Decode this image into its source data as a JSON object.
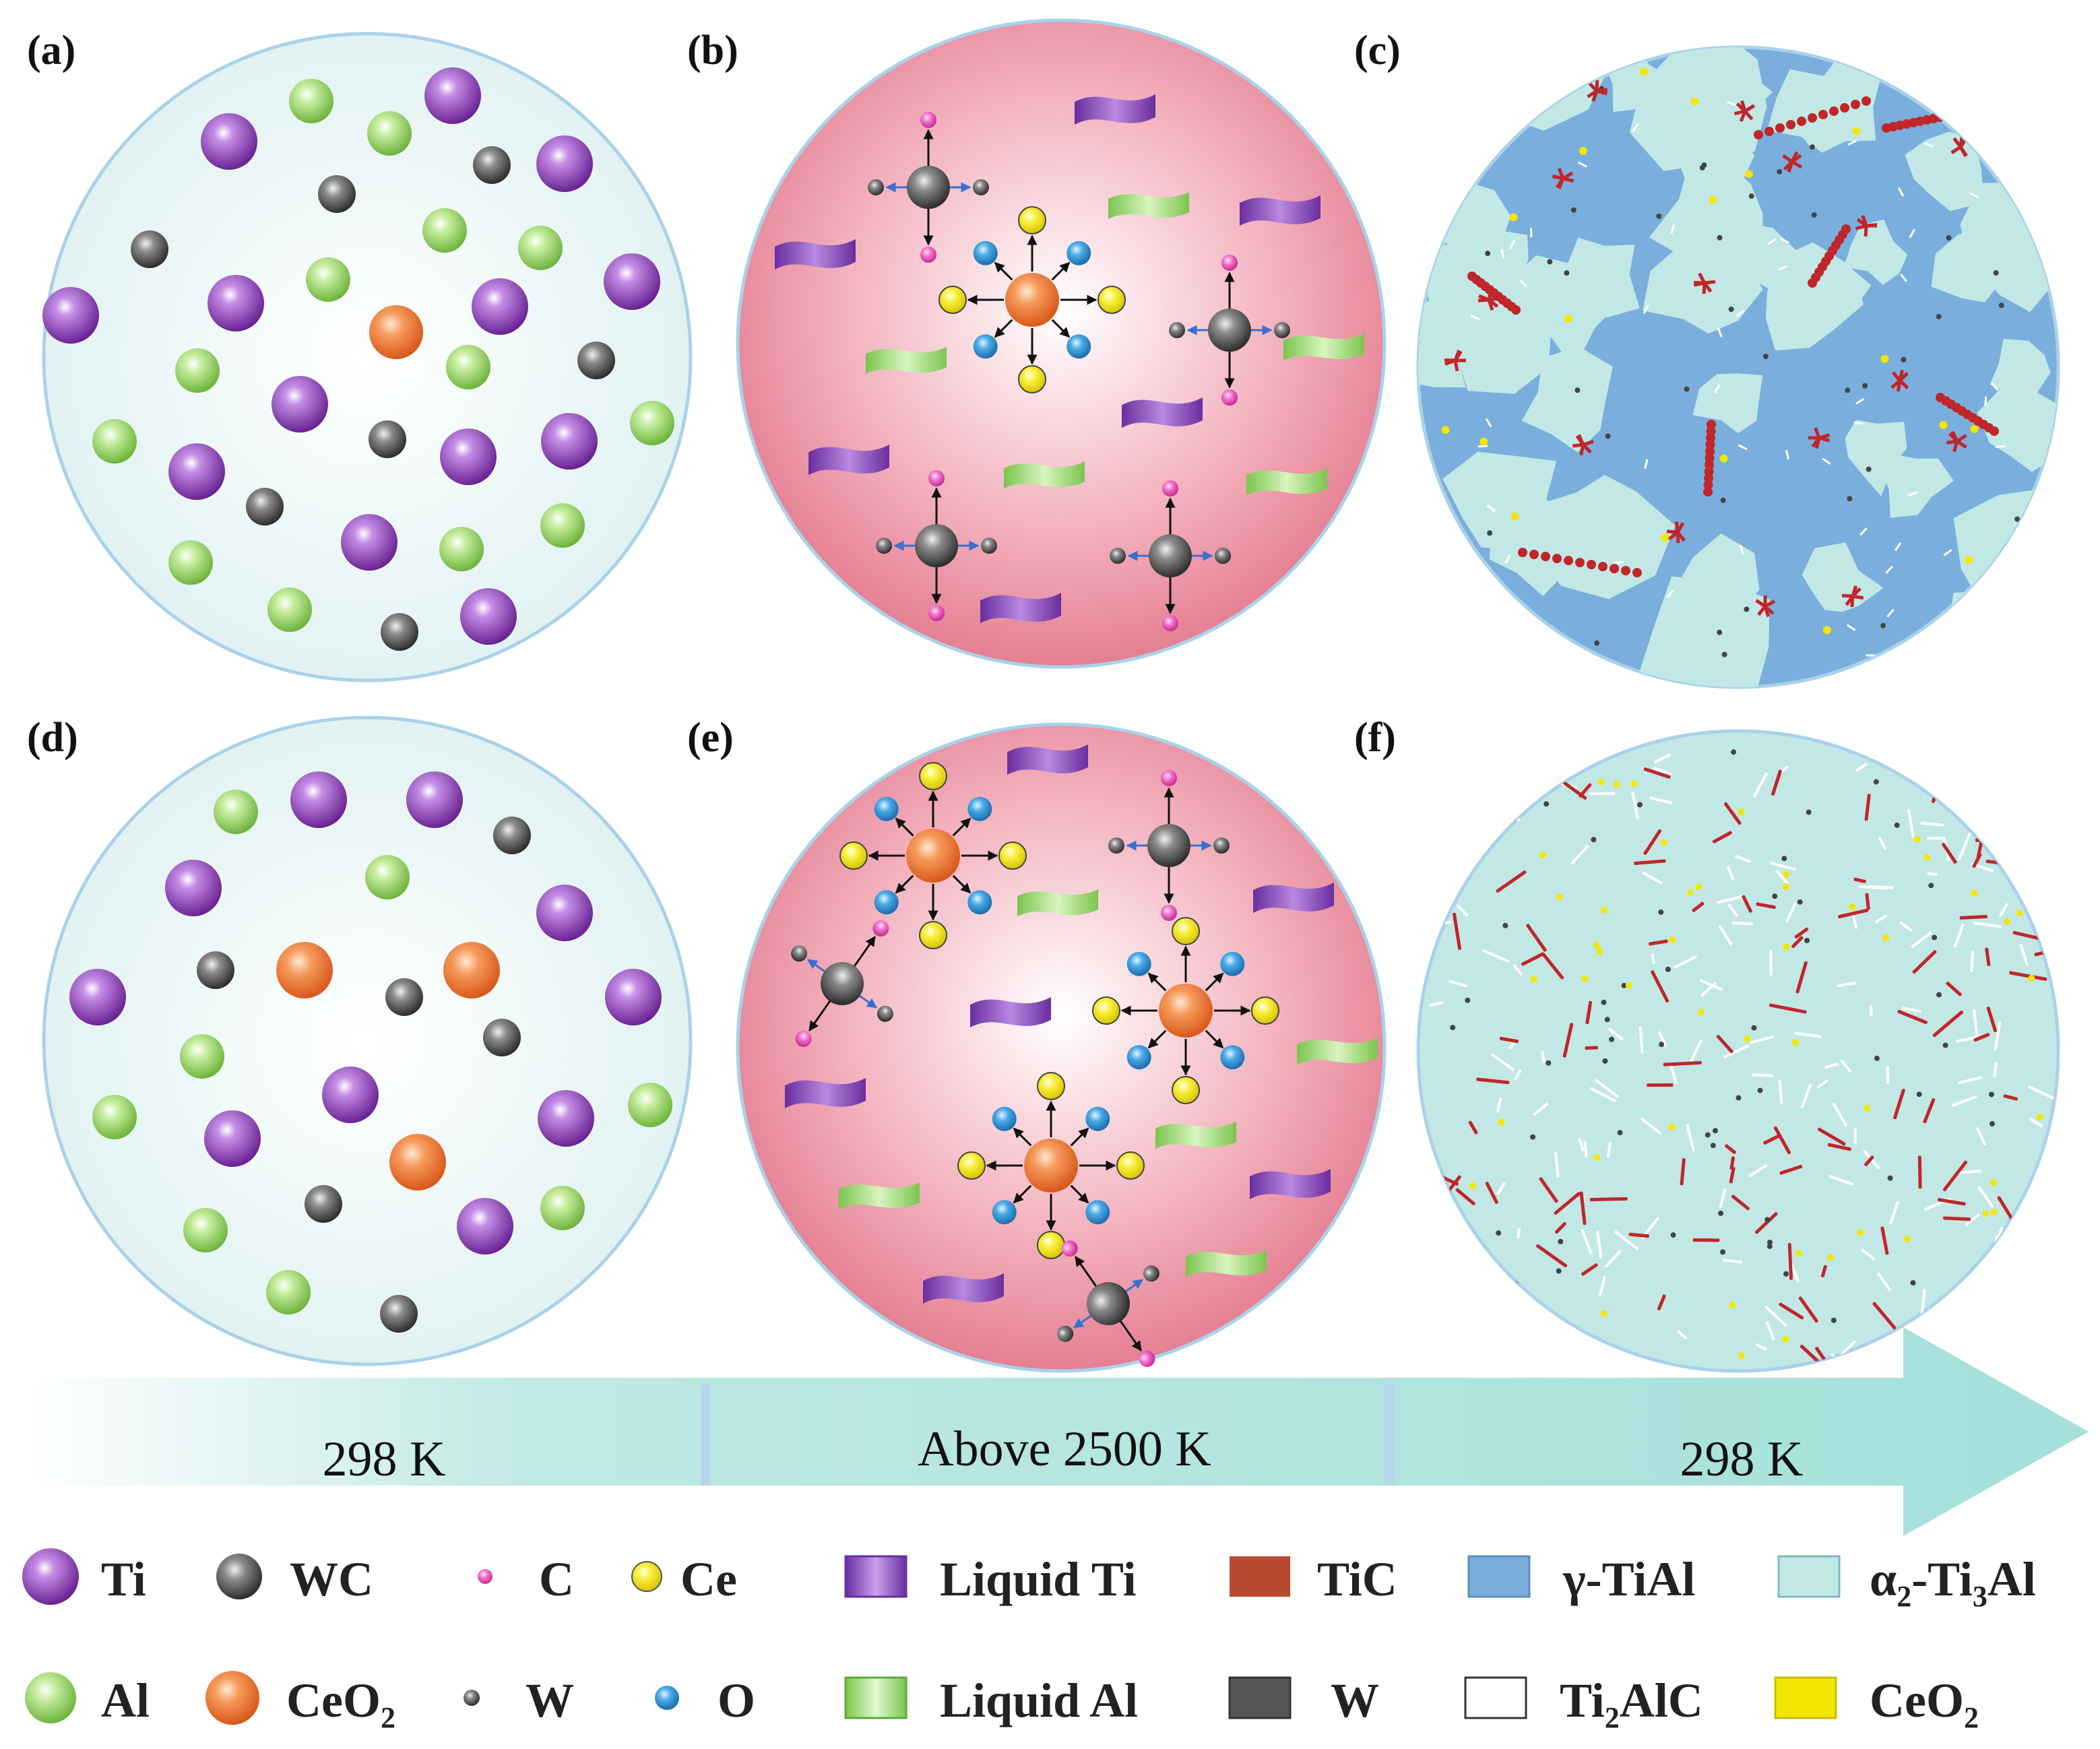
{
  "figure": {
    "panels": [
      {
        "id": "a",
        "label": "(a)",
        "kind": "mixture-cold"
      },
      {
        "id": "b",
        "label": "(b)",
        "kind": "melt"
      },
      {
        "id": "c",
        "label": "(c)",
        "kind": "solid-coarse"
      },
      {
        "id": "d",
        "label": "(d)",
        "kind": "mixture-cold-ceo2"
      },
      {
        "id": "e",
        "label": "(e)",
        "kind": "melt-ceo2"
      },
      {
        "id": "f",
        "label": "(f)",
        "kind": "solid-fine"
      }
    ],
    "stages": [
      {
        "label": "298 K"
      },
      {
        "label": "Above 2500 K"
      },
      {
        "label": "298 K"
      }
    ],
    "legend": {
      "row1": [
        {
          "symbol": "ti-sphere",
          "label": "Ti"
        },
        {
          "symbol": "wc-sphere",
          "label": "WC"
        },
        {
          "symbol": "c-dot",
          "label": "C"
        },
        {
          "symbol": "ce-dot",
          "label": "Ce"
        },
        {
          "symbol": "liquid-ti-ribbon",
          "label": "Liquid Ti"
        },
        {
          "symbol": "tic-box",
          "label": "TiC"
        },
        {
          "symbol": "gamma-tial-box",
          "label": "γ-TiAl"
        },
        {
          "symbol": "alpha2-box",
          "label": "α",
          "sub": "2",
          "label_tail": "-Ti",
          "sub2": "3",
          "label_tail2": "Al"
        }
      ],
      "row2": [
        {
          "symbol": "al-sphere",
          "label": "Al"
        },
        {
          "symbol": "ceo2-sphere",
          "label": "CeO",
          "sub": "2"
        },
        {
          "symbol": "w-dot",
          "label": "W"
        },
        {
          "symbol": "o-dot",
          "label": "O"
        },
        {
          "symbol": "liquid-al-ribbon",
          "label": "Liquid Al"
        },
        {
          "symbol": "w-box",
          "label": "W"
        },
        {
          "symbol": "ti2alc-box",
          "label": "Ti",
          "sub": "2",
          "label_tail": "AlC"
        },
        {
          "symbol": "ceo2-box",
          "label": "CeO",
          "sub": "2"
        }
      ]
    },
    "colors": {
      "ti": "#8a3fb4",
      "al": "#8fcd5c",
      "wc": "#555555",
      "ceo2": "#ef7b35",
      "ce": "#f2e21d",
      "o": "#2b8fd0",
      "c": "#e83fb0",
      "liquid_ti": "#8a4cc0",
      "liquid_al": "#8fd46a",
      "tic": "#b94a32",
      "gamma_tial": "#7aaedc",
      "alpha2": "#bfe8e6",
      "w": "#555555",
      "ti2alc": "#ffffff",
      "ceo2_phase": "#f3e600",
      "melt_outer": "#ea8c9c",
      "cold_bg": "#e6f4f4",
      "arrow": "#a8e3dd"
    }
  }
}
